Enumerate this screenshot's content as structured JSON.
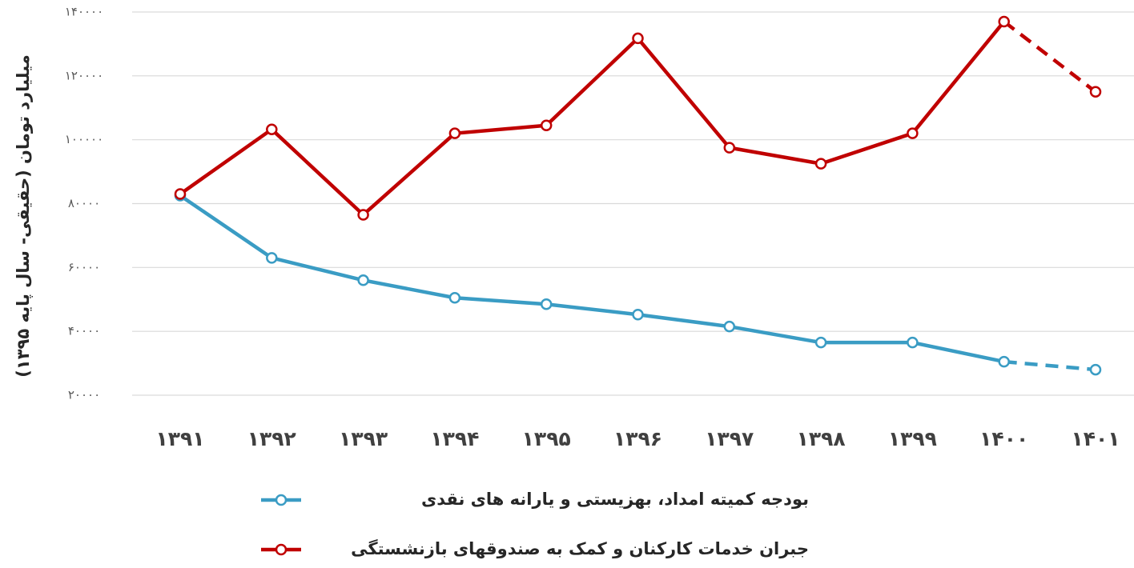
{
  "chart_data": {
    "type": "line",
    "y_label": "میلیارد تومان (حقیقی- سال پایه ۱۳۹۵)",
    "categories": [
      "۱۳۹۱",
      "۱۳۹۲",
      "۱۳۹۳",
      "۱۳۹۴",
      "۱۳۹۵",
      "۱۳۹۶",
      "۱۳۹۷",
      "۱۳۹۸",
      "۱۳۹۹",
      "۱۴۰۰",
      "۱۴۰۱"
    ],
    "series": [
      {
        "name": "بودجه کمیته امداد، بهزیستی و یارانه های نقدی",
        "color": "#3a9cc4",
        "values": [
          82500,
          63000,
          56000,
          50500,
          48500,
          45250,
          41500,
          36500,
          36500,
          30500,
          28000
        ]
      },
      {
        "name": "جبران خدمات کارکنان و کمک به صندوقهای بازنشستگی",
        "color": "#c00000",
        "values": [
          83000,
          103250,
          76500,
          102000,
          104500,
          131750,
          97500,
          92500,
          102000,
          137000,
          115000
        ]
      }
    ],
    "dashed_last_segment": true,
    "ylim": [
      20000,
      140000
    ],
    "yticks": [
      {
        "value": 20000,
        "label": "۲۰۰۰۰"
      },
      {
        "value": 40000,
        "label": "۴۰۰۰۰"
      },
      {
        "value": 60000,
        "label": "۶۰۰۰۰"
      },
      {
        "value": 80000,
        "label": "۸۰۰۰۰"
      },
      {
        "value": 100000,
        "label": "۱۰۰۰۰۰"
      },
      {
        "value": 120000,
        "label": "۱۲۰۰۰۰"
      },
      {
        "value": 140000,
        "label": "۱۴۰۰۰۰"
      }
    ],
    "grid": true
  }
}
